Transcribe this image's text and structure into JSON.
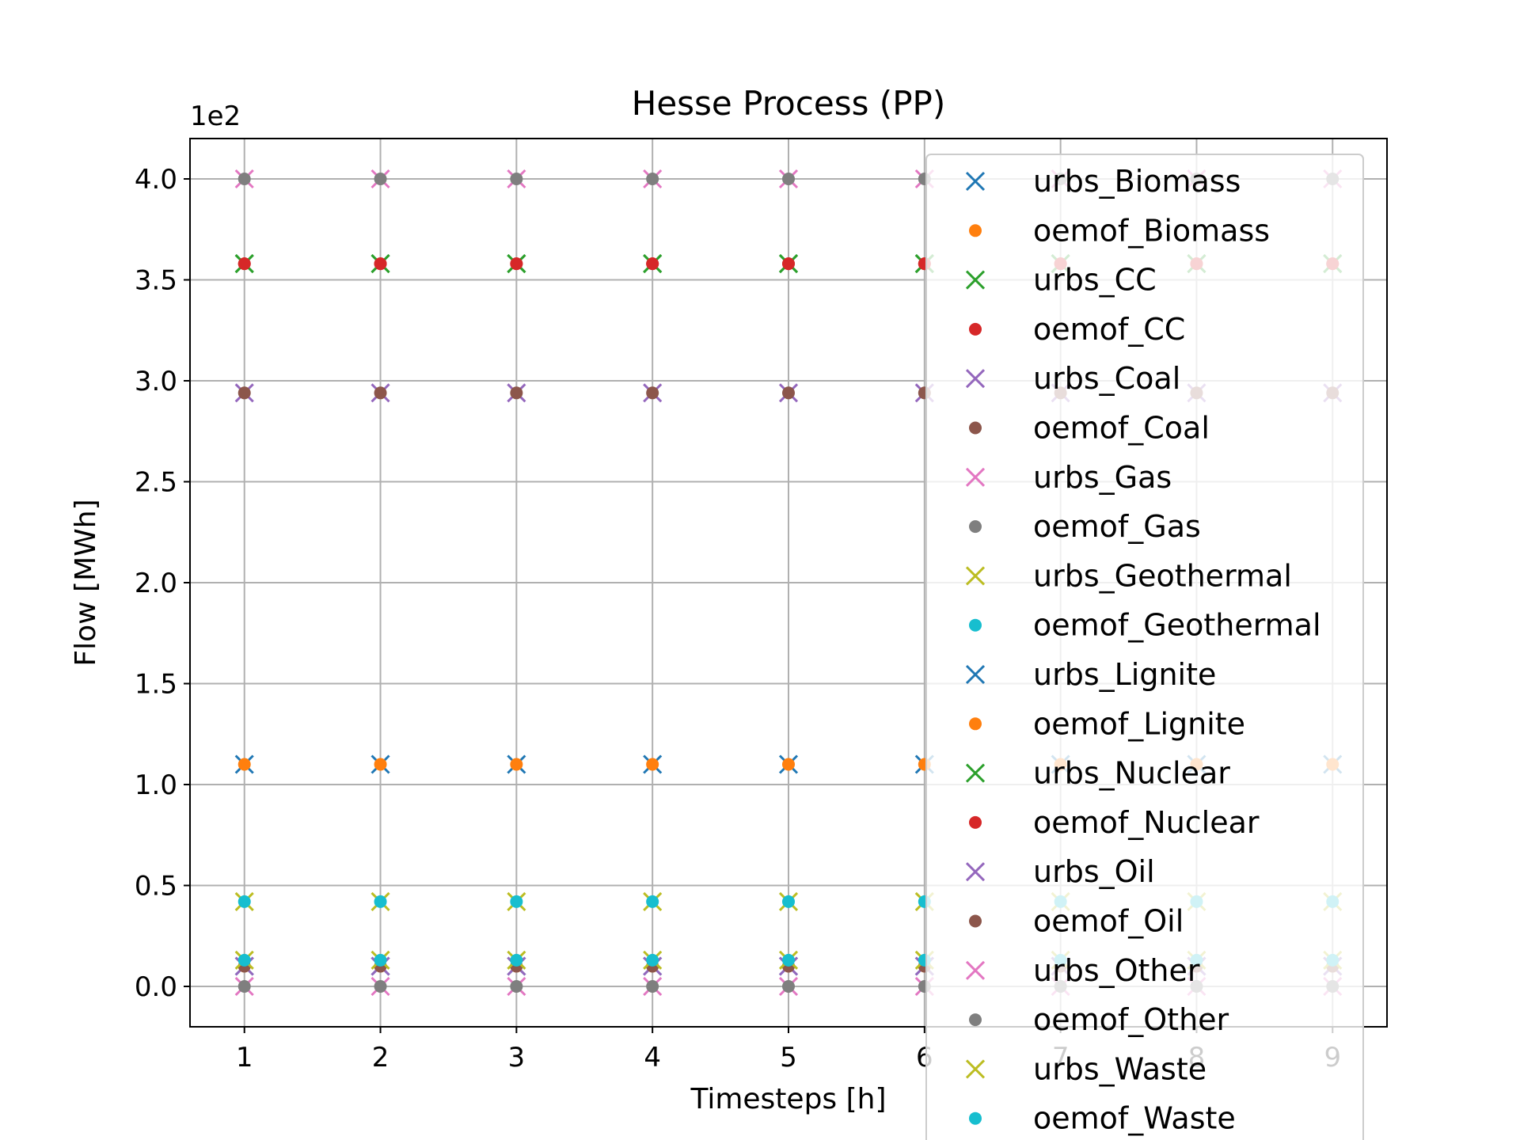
{
  "chart_data": {
    "type": "scatter",
    "title": "Hesse Process (PP)",
    "xlabel": "Timesteps [h]",
    "ylabel": "Flow [MWh]",
    "offset_text": "1e2",
    "x": [
      1,
      2,
      3,
      4,
      5,
      6,
      7,
      8,
      9
    ],
    "xlim": [
      0.6,
      9.4
    ],
    "ylim": [
      -0.2,
      4.2
    ],
    "xticks": [
      "1",
      "2",
      "3",
      "4",
      "5",
      "6",
      "7",
      "8",
      "9"
    ],
    "yticks": [
      "0.0",
      "0.5",
      "1.0",
      "1.5",
      "2.0",
      "2.5",
      "3.0",
      "3.5",
      "4.0"
    ],
    "grid": true,
    "legend_position": "right",
    "series": [
      {
        "name": "urbs_Biomass",
        "marker": "x",
        "color": "#1f77b4",
        "values": [
          0.1,
          0.1,
          0.1,
          0.1,
          0.1,
          0.1,
          0.1,
          0.1,
          0.1
        ]
      },
      {
        "name": "oemof_Biomass",
        "marker": "dot",
        "color": "#ff7f0e",
        "values": [
          0.1,
          0.1,
          0.1,
          0.1,
          0.1,
          0.1,
          0.1,
          0.1,
          0.1
        ]
      },
      {
        "name": "urbs_CC",
        "marker": "x",
        "color": "#2ca02c",
        "values": [
          3.58,
          3.58,
          3.58,
          3.58,
          3.58,
          3.58,
          3.58,
          3.58,
          3.58
        ]
      },
      {
        "name": "oemof_CC",
        "marker": "dot",
        "color": "#d62728",
        "values": [
          3.58,
          3.58,
          3.58,
          3.58,
          3.58,
          3.58,
          3.58,
          3.58,
          3.58
        ]
      },
      {
        "name": "urbs_Coal",
        "marker": "x",
        "color": "#9467bd",
        "values": [
          2.94,
          2.94,
          2.94,
          2.94,
          2.94,
          2.94,
          2.94,
          2.94,
          2.94
        ]
      },
      {
        "name": "oemof_Coal",
        "marker": "dot",
        "color": "#8c564b",
        "values": [
          2.94,
          2.94,
          2.94,
          2.94,
          2.94,
          2.94,
          2.94,
          2.94,
          2.94
        ]
      },
      {
        "name": "urbs_Gas",
        "marker": "x",
        "color": "#e377c2",
        "values": [
          4.0,
          4.0,
          4.0,
          4.0,
          4.0,
          4.0,
          4.0,
          4.0,
          4.0
        ]
      },
      {
        "name": "oemof_Gas",
        "marker": "dot",
        "color": "#7f7f7f",
        "values": [
          4.0,
          4.0,
          4.0,
          4.0,
          4.0,
          4.0,
          4.0,
          4.0,
          4.0
        ]
      },
      {
        "name": "urbs_Geothermal",
        "marker": "x",
        "color": "#bcbd22",
        "values": [
          0.42,
          0.42,
          0.42,
          0.42,
          0.42,
          0.42,
          0.42,
          0.42,
          0.42
        ]
      },
      {
        "name": "oemof_Geothermal",
        "marker": "dot",
        "color": "#17becf",
        "values": [
          0.42,
          0.42,
          0.42,
          0.42,
          0.42,
          0.42,
          0.42,
          0.42,
          0.42
        ]
      },
      {
        "name": "urbs_Lignite",
        "marker": "x",
        "color": "#1f77b4",
        "values": [
          1.1,
          1.1,
          1.1,
          1.1,
          1.1,
          1.1,
          1.1,
          1.1,
          1.1
        ]
      },
      {
        "name": "oemof_Lignite",
        "marker": "dot",
        "color": "#ff7f0e",
        "values": [
          1.1,
          1.1,
          1.1,
          1.1,
          1.1,
          1.1,
          1.1,
          1.1,
          1.1
        ]
      },
      {
        "name": "urbs_Nuclear",
        "marker": "x",
        "color": "#2ca02c",
        "values": [
          3.58,
          3.58,
          3.58,
          3.58,
          3.58,
          3.58,
          3.58,
          3.58,
          3.58
        ]
      },
      {
        "name": "oemof_Nuclear",
        "marker": "dot",
        "color": "#d62728",
        "values": [
          3.58,
          3.58,
          3.58,
          3.58,
          3.58,
          3.58,
          3.58,
          3.58,
          3.58
        ]
      },
      {
        "name": "urbs_Oil",
        "marker": "x",
        "color": "#9467bd",
        "values": [
          0.1,
          0.1,
          0.1,
          0.1,
          0.1,
          0.1,
          0.1,
          0.1,
          0.1
        ]
      },
      {
        "name": "oemof_Oil",
        "marker": "dot",
        "color": "#8c564b",
        "values": [
          0.1,
          0.1,
          0.1,
          0.1,
          0.1,
          0.1,
          0.1,
          0.1,
          0.1
        ]
      },
      {
        "name": "urbs_Other",
        "marker": "x",
        "color": "#e377c2",
        "values": [
          0.0,
          0.0,
          0.0,
          0.0,
          0.0,
          0.0,
          0.0,
          0.0,
          0.0
        ]
      },
      {
        "name": "oemof_Other",
        "marker": "dot",
        "color": "#7f7f7f",
        "values": [
          0.0,
          0.0,
          0.0,
          0.0,
          0.0,
          0.0,
          0.0,
          0.0,
          0.0
        ]
      },
      {
        "name": "urbs_Waste",
        "marker": "x",
        "color": "#bcbd22",
        "values": [
          0.13,
          0.13,
          0.13,
          0.13,
          0.13,
          0.13,
          0.13,
          0.13,
          0.13
        ]
      },
      {
        "name": "oemof_Waste",
        "marker": "dot",
        "color": "#17becf",
        "values": [
          0.13,
          0.13,
          0.13,
          0.13,
          0.13,
          0.13,
          0.13,
          0.13,
          0.13
        ]
      }
    ]
  }
}
